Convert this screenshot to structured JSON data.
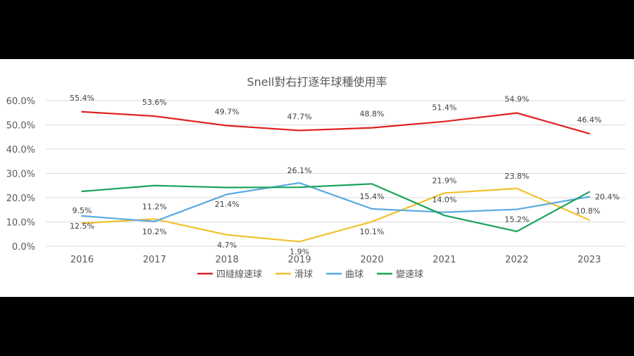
{
  "chart_data": {
    "type": "line",
    "title": "Snell對右打逐年球種使用率",
    "xlabel": "",
    "ylabel": "",
    "categories": [
      "2016",
      "2017",
      "2018",
      "2019",
      "2020",
      "2021",
      "2022",
      "2023"
    ],
    "ylim": [
      0,
      60
    ],
    "yticks": [
      "0.0%",
      "10.0%",
      "20.0%",
      "30.0%",
      "40.0%",
      "50.0%",
      "60.0%"
    ],
    "grid": true,
    "legend_position": "bottom",
    "series": [
      {
        "name": "四縫線速球",
        "color": "#e02020",
        "values": [
          55.4,
          53.6,
          49.7,
          47.7,
          48.8,
          51.4,
          54.9,
          46.4
        ],
        "labels": [
          "55.4%",
          "53.6%",
          "49.7%",
          "47.7%",
          "48.8%",
          "51.4%",
          "54.9%",
          "46.4%"
        ]
      },
      {
        "name": "滑球",
        "color": "#f2c12e",
        "values": [
          9.5,
          11.2,
          4.7,
          1.9,
          10.1,
          21.9,
          23.8,
          10.8
        ],
        "labels": [
          "9.5%",
          "11.2%",
          "4.7%",
          "1.9%",
          "10.1%",
          "21.9%",
          "23.8%",
          "10.8%"
        ]
      },
      {
        "name": "曲球",
        "color": "#5aa9e0",
        "values": [
          12.5,
          10.2,
          21.4,
          26.1,
          15.4,
          14.0,
          15.2,
          20.4
        ],
        "labels": [
          "12.5%",
          "10.2%",
          "21.4%",
          "26.1%",
          "15.4%",
          "14.0%",
          "15.2%",
          "20.4%"
        ]
      },
      {
        "name": "變速球",
        "color": "#1aa35a",
        "values": [
          22.6,
          25.0,
          24.2,
          24.3,
          25.7,
          12.7,
          6.1,
          22.4
        ],
        "labels": []
      }
    ]
  }
}
